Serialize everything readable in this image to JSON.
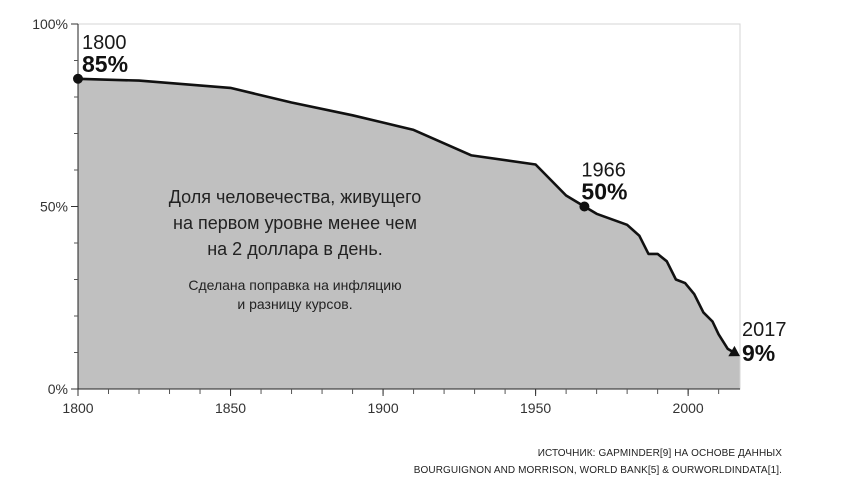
{
  "chart_data": {
    "type": "area",
    "x": [
      1800,
      1820,
      1850,
      1870,
      1890,
      1910,
      1929,
      1950,
      1960,
      1966,
      1970,
      1980,
      1984,
      1987,
      1990,
      1993,
      1996,
      1999,
      2002,
      2005,
      2008,
      2010,
      2013,
      2017
    ],
    "y": [
      85,
      84.5,
      82.5,
      78.5,
      75,
      71,
      64,
      61.5,
      53,
      50,
      48,
      45,
      42,
      37,
      37,
      35,
      30,
      29,
      26,
      21,
      18.5,
      15,
      11,
      9
    ],
    "xlim": [
      1800,
      2017
    ],
    "ylim": [
      0,
      100
    ],
    "xticks": [
      "1800",
      "1850",
      "1900",
      "1950",
      "2000"
    ],
    "yticks": [
      "0%",
      "50%",
      "100%"
    ],
    "annotations": [
      {
        "year": "1800",
        "value": "85%",
        "x": 1800,
        "y": 85
      },
      {
        "year": "1966",
        "value": "50%",
        "x": 1966,
        "y": 50
      },
      {
        "year": "2017",
        "value": "9%",
        "x": 2017,
        "y": 9
      }
    ],
    "description": [
      "Доля человечества, живущего",
      "на первом уровне менее чем",
      "на 2 доллара в день."
    ],
    "note": [
      "Сделана поправка на инфляцию",
      "и разницу курсов."
    ],
    "source": [
      "ИСТОЧНИК: GAPMINDER[9] НА ОСНОВЕ ДАННЫХ",
      "BOURGUIGNON AND MORRISON, WORLD BANK[5] & OURWORLDINDATA[1]."
    ],
    "grid": false,
    "colors": {
      "area": "#c0c0c0",
      "line": "#111111"
    }
  }
}
